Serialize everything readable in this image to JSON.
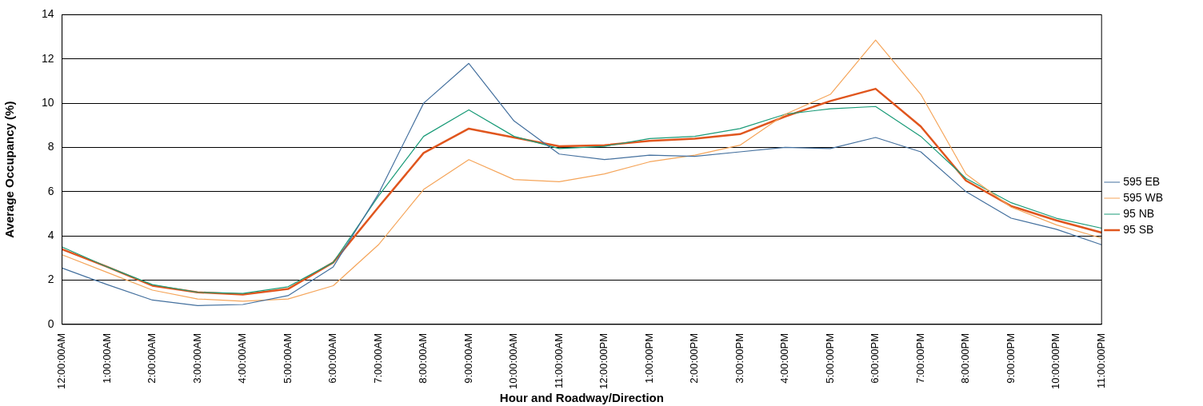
{
  "chart_data": {
    "type": "line",
    "xlabel": "Hour and Roadway/Direction",
    "ylabel": "Average Occupancy (%)",
    "categories": [
      "12:00:00AM",
      "1:00:00AM",
      "2:00:00AM",
      "3:00:00AM",
      "4:00:00AM",
      "5:00:00AM",
      "6:00:00AM",
      "7:00:00AM",
      "8:00:00AM",
      "9:00:00AM",
      "10:00:00AM",
      "11:00:00AM",
      "12:00:00PM",
      "1:00:00PM",
      "2:00:00PM",
      "3:00:00PM",
      "4:00:00PM",
      "5:00:00PM",
      "6:00:00PM",
      "7:00:00PM",
      "8:00:00PM",
      "9:00:00PM",
      "10:00:00PM",
      "11:00:00PM"
    ],
    "series": [
      {
        "name": "595 EB",
        "color": "#44709e",
        "values": [
          2.55,
          1.8,
          1.1,
          0.85,
          0.9,
          1.3,
          2.6,
          5.9,
          10.0,
          11.8,
          9.2,
          7.7,
          7.45,
          7.65,
          7.6,
          7.8,
          8.0,
          7.95,
          8.45,
          7.8,
          6.0,
          4.8,
          4.3,
          3.6
        ]
      },
      {
        "name": "595 WB",
        "color": "#f5a55a",
        "values": [
          3.15,
          2.35,
          1.55,
          1.15,
          1.05,
          1.15,
          1.75,
          3.6,
          6.1,
          7.45,
          6.55,
          6.45,
          6.8,
          7.35,
          7.65,
          8.1,
          9.5,
          10.4,
          12.85,
          10.4,
          6.8,
          5.3,
          4.5,
          3.9
        ]
      },
      {
        "name": "95 NB",
        "color": "#1a9b78",
        "values": [
          3.5,
          2.6,
          1.8,
          1.45,
          1.4,
          1.7,
          2.8,
          5.8,
          8.5,
          9.7,
          8.5,
          7.95,
          8.05,
          8.4,
          8.5,
          8.85,
          9.5,
          9.75,
          9.85,
          8.5,
          6.6,
          5.5,
          4.8,
          4.35
        ]
      },
      {
        "name": "95 SB",
        "color": "#e0561e",
        "values": [
          3.4,
          2.6,
          1.75,
          1.45,
          1.35,
          1.6,
          2.8,
          5.3,
          7.75,
          8.85,
          8.45,
          8.05,
          8.1,
          8.3,
          8.4,
          8.6,
          9.4,
          10.1,
          10.65,
          8.95,
          6.5,
          5.35,
          4.7,
          4.15
        ]
      }
    ],
    "ylim": [
      0,
      14
    ],
    "yticks": [
      0,
      2,
      4,
      6,
      8,
      10,
      12,
      14
    ],
    "grid": "y",
    "legend": "right",
    "marker": "none",
    "line_style": "solid"
  }
}
